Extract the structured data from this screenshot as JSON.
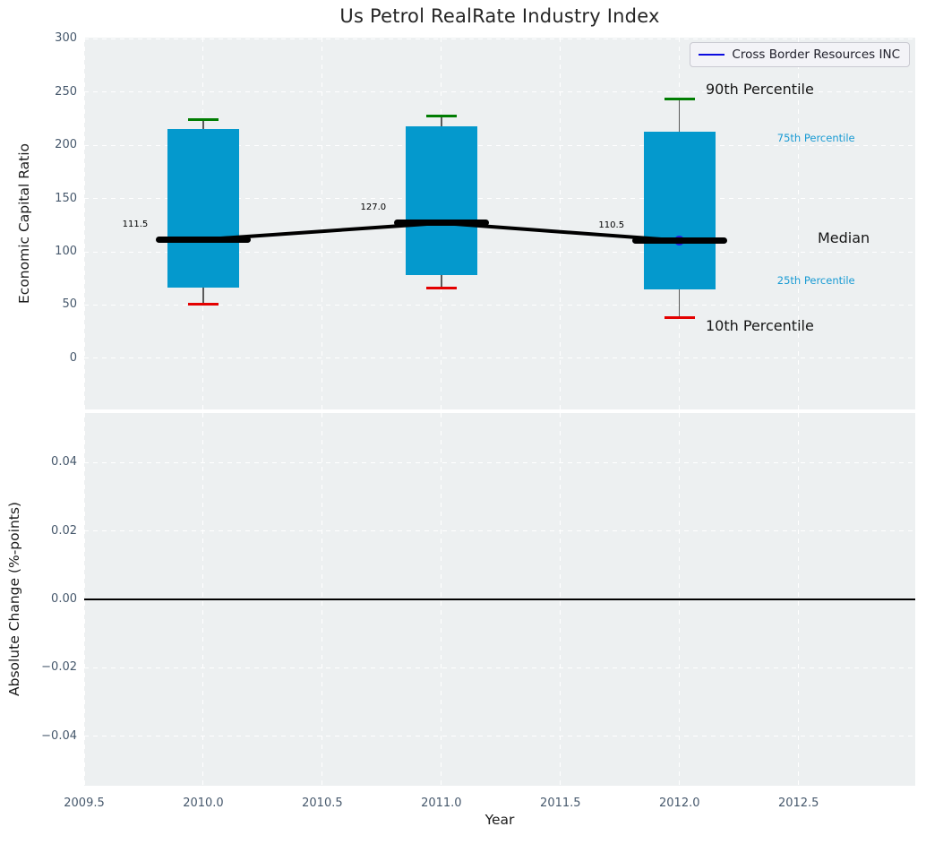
{
  "title": "Us Petrol RealRate Industry Index",
  "legend": {
    "label": "Cross Border Resources INC"
  },
  "colors": {
    "axes_bg": "#edf0f1",
    "grid": "#ffffff",
    "box_fill": "#0499cd",
    "whisker": "#5a5a5a",
    "cap_high": "#007d02",
    "cap_low": "#e40000",
    "median": "#000000",
    "company": "#2121dd",
    "legend_line": "#0b0bdf",
    "tick_text": "#46586c",
    "annotation_accent": "#189ad3",
    "zero_line": "#000000"
  },
  "chart_data": [
    {
      "type": "boxplot",
      "panel": "top",
      "ylabel": "Economic Capital Ratio",
      "ylim": [
        -48,
        301
      ],
      "yticks": [
        {
          "v": 300,
          "label": "300"
        },
        {
          "v": 250,
          "label": "250"
        },
        {
          "v": 200,
          "label": "200"
        },
        {
          "v": 150,
          "label": "150"
        },
        {
          "v": 100,
          "label": "100"
        },
        {
          "v": 50,
          "label": "50"
        },
        {
          "v": 0,
          "label": "0"
        }
      ],
      "grid": true,
      "boxes": [
        {
          "x": 2010,
          "p10": 51,
          "p25": 66,
          "median": 111.5,
          "p75": 215,
          "p90": 224,
          "median_label": "111.5"
        },
        {
          "x": 2011,
          "p10": 66,
          "p25": 78,
          "median": 127.0,
          "p75": 218,
          "p90": 227,
          "median_label": "127.0"
        },
        {
          "x": 2012,
          "p10": 38,
          "p25": 65,
          "median": 110.5,
          "p75": 213,
          "p90": 243,
          "median_label": "110.5"
        }
      ],
      "median_series": [
        111.5,
        127.0,
        110.5
      ],
      "company_point": {
        "name": "Cross Border Resources INC",
        "x": 2012,
        "y": 110.5
      },
      "annotations": [
        {
          "text": "90th Percentile",
          "x": 2012.11,
          "y": 252,
          "style": "dark"
        },
        {
          "text": "75th Percentile",
          "x": 2012.41,
          "y": 207,
          "style": "accent"
        },
        {
          "text": "Median",
          "x": 2012.58,
          "y": 113,
          "style": "dark"
        },
        {
          "text": "25th Percentile",
          "x": 2012.41,
          "y": 73,
          "style": "accent"
        },
        {
          "text": "10th Percentile",
          "x": 2012.11,
          "y": 30,
          "style": "dark"
        }
      ]
    },
    {
      "type": "line",
      "panel": "bottom",
      "ylabel": "Absolute Change (%-points)",
      "ylim": [
        -0.0545,
        0.0545
      ],
      "yticks": [
        {
          "v": 0.04,
          "label": "0.04"
        },
        {
          "v": 0.02,
          "label": "0.02"
        },
        {
          "v": 0.0,
          "label": "0.00"
        },
        {
          "v": -0.02,
          "label": "−0.02"
        },
        {
          "v": -0.04,
          "label": "−0.04"
        }
      ],
      "grid": true,
      "zero_line": 0.0,
      "series": []
    }
  ],
  "x_axis": {
    "label": "Year",
    "xlim": [
      2009.5,
      2012.99
    ],
    "ticks": [
      {
        "v": 2009.5,
        "label": "2009.5"
      },
      {
        "v": 2010.0,
        "label": "2010.0"
      },
      {
        "v": 2010.5,
        "label": "2010.5"
      },
      {
        "v": 2011.0,
        "label": "2011.0"
      },
      {
        "v": 2011.5,
        "label": "2011.5"
      },
      {
        "v": 2012.0,
        "label": "2012.0"
      },
      {
        "v": 2012.5,
        "label": "2012.5"
      }
    ]
  }
}
